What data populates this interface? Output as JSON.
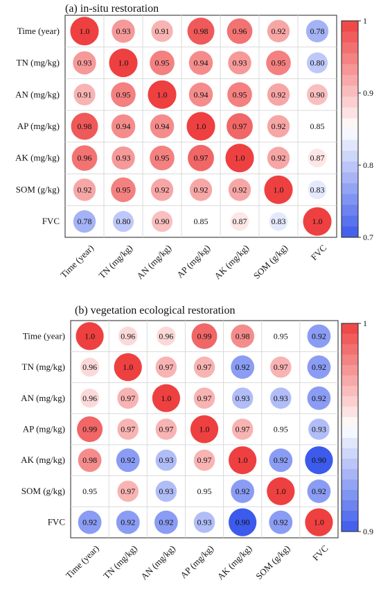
{
  "chart_data": [
    {
      "type": "heatmap",
      "title": "(a) in-situ restoration",
      "variables": [
        "Time (year)",
        "TN (mg/kg)",
        "AN (mg/kg)",
        "AP (mg/kg)",
        "AK (mg/kg)",
        "SOM (g/kg)",
        "FVC"
      ],
      "matrix": [
        [
          1.0,
          0.93,
          0.91,
          0.98,
          0.96,
          0.92,
          0.78
        ],
        [
          0.93,
          1.0,
          0.95,
          0.94,
          0.93,
          0.95,
          0.8
        ],
        [
          0.91,
          0.95,
          1.0,
          0.94,
          0.95,
          0.92,
          0.9
        ],
        [
          0.98,
          0.94,
          0.94,
          1.0,
          0.97,
          0.92,
          0.85
        ],
        [
          0.96,
          0.93,
          0.95,
          0.97,
          1.0,
          0.92,
          0.87
        ],
        [
          0.92,
          0.95,
          0.92,
          0.92,
          0.92,
          1.0,
          0.83
        ],
        [
          0.78,
          0.8,
          0.9,
          0.85,
          0.87,
          0.83,
          1.0
        ]
      ],
      "colorbar": {
        "min": 0.7,
        "max": 1.0,
        "ticks": [
          1,
          0.9,
          0.8,
          0.7
        ]
      }
    },
    {
      "type": "heatmap",
      "title": "(b) vegetation ecological restoration",
      "variables": [
        "Time (year)",
        "TN (mg/kg)",
        "AN (mg/kg)",
        "AP (mg/kg)",
        "AK (mg/kg)",
        "SOM (g/kg)",
        "FVC"
      ],
      "matrix": [
        [
          1.0,
          0.96,
          0.96,
          0.99,
          0.98,
          0.95,
          0.92
        ],
        [
          0.96,
          1.0,
          0.97,
          0.97,
          0.92,
          0.97,
          0.92
        ],
        [
          0.96,
          0.97,
          1.0,
          0.97,
          0.93,
          0.93,
          0.92
        ],
        [
          0.99,
          0.97,
          0.97,
          1.0,
          0.97,
          0.95,
          0.93
        ],
        [
          0.98,
          0.92,
          0.93,
          0.97,
          1.0,
          0.92,
          0.9
        ],
        [
          0.95,
          0.97,
          0.93,
          0.95,
          0.92,
          1.0,
          0.92
        ],
        [
          0.92,
          0.92,
          0.92,
          0.93,
          0.9,
          0.92,
          1.0
        ]
      ],
      "colorbar": {
        "min": 0.9,
        "max": 1.0,
        "ticks": [
          1,
          0.9
        ]
      }
    }
  ]
}
